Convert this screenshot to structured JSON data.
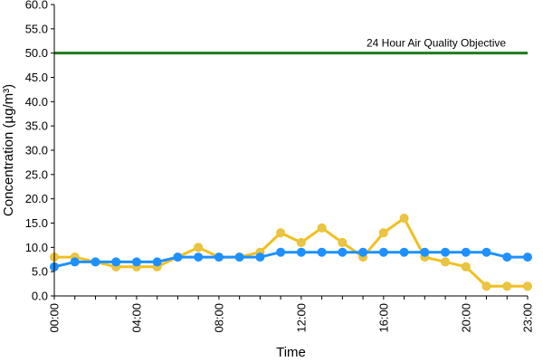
{
  "chart_data": {
    "type": "line",
    "xlabel": "Time",
    "ylabel": "Concentration (µg/m³)",
    "ylim": [
      0,
      60
    ],
    "yticks": [
      "0.0",
      "5.0",
      "10.0",
      "15.0",
      "20.0",
      "25.0",
      "30.0",
      "35.0",
      "40.0",
      "45.0",
      "50.0",
      "55.0",
      "60.0"
    ],
    "xlim": [
      0,
      23
    ],
    "xticks": [
      {
        "value": 0,
        "label": "00:00"
      },
      {
        "value": 4,
        "label": "04:00"
      },
      {
        "value": 8,
        "label": "08:00"
      },
      {
        "value": 12,
        "label": "12:00"
      },
      {
        "value": 16,
        "label": "16:00"
      },
      {
        "value": 20,
        "label": "20:00"
      },
      {
        "value": 23,
        "label": "23:00"
      }
    ],
    "x": [
      0,
      1,
      2,
      3,
      4,
      5,
      6,
      7,
      8,
      9,
      10,
      11,
      12,
      13,
      14,
      15,
      16,
      17,
      18,
      19,
      20,
      21,
      22,
      23
    ],
    "series": [
      {
        "color": "#f0c020",
        "marker_color": "#e8c44a",
        "values": [
          8,
          8,
          7,
          6,
          6,
          6,
          8,
          10,
          8,
          8,
          9,
          13,
          11,
          14,
          11,
          8,
          13,
          16,
          8,
          7,
          6,
          2,
          2,
          2
        ]
      },
      {
        "color": "#1e90ff",
        "marker_color": "#1e90ff",
        "values": [
          6,
          7,
          7,
          7,
          7,
          7,
          8,
          8,
          8,
          8,
          8,
          9,
          9,
          9,
          9,
          9,
          9,
          9,
          9,
          9,
          9,
          9,
          8,
          8
        ]
      }
    ],
    "reference_line": {
      "value": 50,
      "label": "24 Hour Air Quality Objective",
      "color": "#1f7a1f"
    },
    "grid": false,
    "legend": "none"
  }
}
